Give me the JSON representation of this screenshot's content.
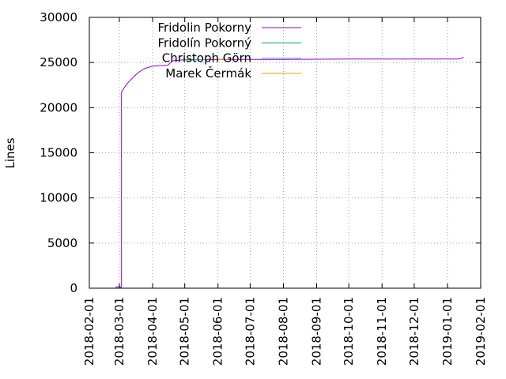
{
  "chart_data": {
    "type": "line",
    "title": "",
    "xlabel": "",
    "ylabel": "Lines",
    "ylim": [
      0,
      30000
    ],
    "xlim": [
      "2018-02-01",
      "2019-02-01"
    ],
    "grid": true,
    "legend_position": "top-left",
    "yticks": [
      0,
      5000,
      10000,
      15000,
      20000,
      25000,
      30000
    ],
    "xticks": [
      "2018-02-01",
      "2018-03-01",
      "2018-04-01",
      "2018-05-01",
      "2018-06-01",
      "2018-07-01",
      "2018-08-01",
      "2018-09-01",
      "2018-10-01",
      "2018-11-01",
      "2018-12-01",
      "2019-01-01",
      "2019-02-01"
    ],
    "series": [
      {
        "name": "Fridolin Pokorny",
        "color": "#9400d3",
        "points": [
          [
            "2018-02-01",
            0
          ],
          [
            "2018-02-26",
            0
          ],
          [
            "2018-02-26",
            150
          ],
          [
            "2018-03-02",
            150
          ],
          [
            "2018-03-02",
            0
          ],
          [
            "2018-03-03",
            0
          ],
          [
            "2018-03-03",
            21700
          ],
          [
            "2018-03-06",
            22300
          ],
          [
            "2018-03-10",
            22900
          ],
          [
            "2018-03-15",
            23500
          ],
          [
            "2018-03-20",
            24000
          ],
          [
            "2018-03-25",
            24350
          ],
          [
            "2018-04-01",
            24600
          ],
          [
            "2018-04-15",
            24700
          ],
          [
            "2018-04-20",
            25200
          ],
          [
            "2018-05-01",
            25300
          ],
          [
            "2018-06-01",
            25350
          ],
          [
            "2018-08-01",
            25350
          ],
          [
            "2018-10-01",
            25380
          ],
          [
            "2018-12-01",
            25380
          ],
          [
            "2019-01-10",
            25380
          ],
          [
            "2019-01-13",
            25420
          ],
          [
            "2019-01-16",
            25600
          ]
        ]
      },
      {
        "name": "Fridolín Pokorný",
        "color": "#009e73",
        "points": [
          [
            "2018-05-01",
            25300
          ],
          [
            "2018-05-15",
            25300
          ]
        ]
      },
      {
        "name": "Christoph Görn",
        "color": "#56b4e9",
        "points": [
          [
            "2018-05-10",
            25320
          ],
          [
            "2018-05-20",
            25320
          ]
        ]
      },
      {
        "name": "Marek Čermák",
        "color": "#e69f00",
        "points": [
          [
            "2018-06-01",
            25350
          ],
          [
            "2018-06-10",
            25350
          ]
        ]
      }
    ]
  }
}
